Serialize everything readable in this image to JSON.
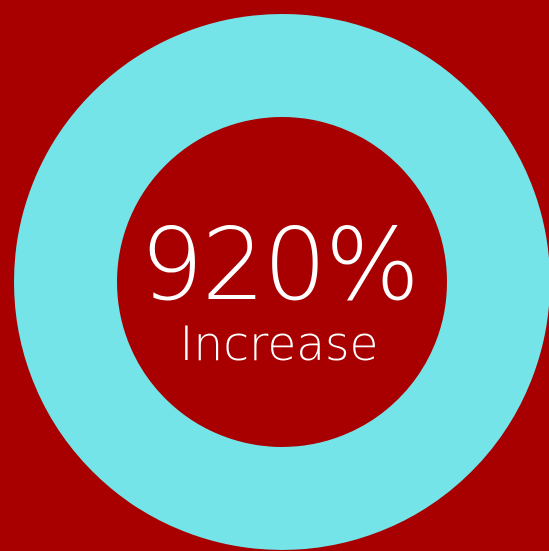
{
  "chart_data": {
    "type": "pie",
    "value_label": "920%",
    "caption": "Increase",
    "values": [
      100
    ],
    "colors": {
      "background": "#a80000",
      "ring": "#74e4e8",
      "text": "#ffffff"
    }
  }
}
